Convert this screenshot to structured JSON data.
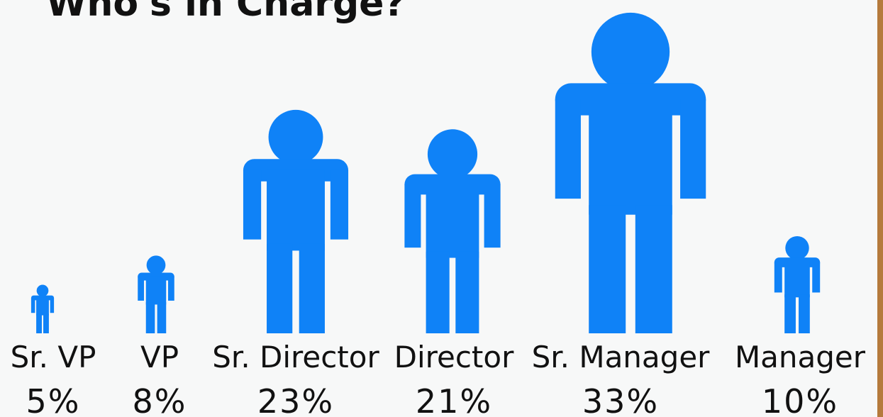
{
  "chart_data": {
    "type": "pictograph",
    "title": "Who's in Charge?",
    "categories": [
      "Sr. VP",
      "VP",
      "Sr. Director",
      "Director",
      "Sr. Manager",
      "Manager"
    ],
    "values": [
      5,
      8,
      23,
      21,
      33,
      10
    ],
    "value_labels": [
      "5%",
      "8%",
      "23%",
      "21%",
      "33%",
      "10%"
    ],
    "color": "#0f82f7"
  }
}
